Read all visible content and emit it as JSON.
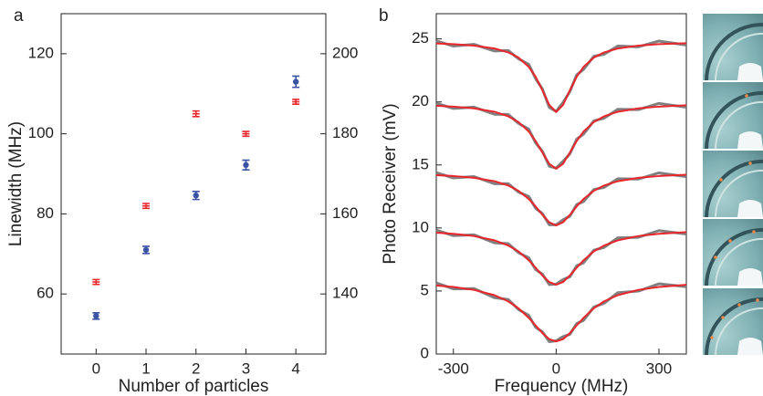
{
  "chart_data": [
    {
      "type": "scatter",
      "panel_label": "a",
      "xlabel": "Number of particles",
      "ylabel": "Linewidth (MHz)",
      "x": [
        0,
        1,
        2,
        3,
        4
      ],
      "xlim": [
        -0.7,
        4.6
      ],
      "xticks": [
        0,
        1,
        2,
        3,
        4
      ],
      "ylim": [
        45,
        130
      ],
      "yticks": [
        60,
        80,
        100,
        120
      ],
      "y2lim": [
        125,
        210
      ],
      "y2ticks": [
        140,
        160,
        180,
        200
      ],
      "series": [
        {
          "color": "#3a53a4",
          "marker": "circle",
          "values": [
            54.5,
            71,
            84.6,
            92.2,
            113
          ],
          "errors": [
            0.8,
            0.9,
            1.0,
            1.2,
            1.4
          ]
        },
        {
          "color": "#e8262b",
          "marker": "dash",
          "axis": "y2",
          "values": [
            143,
            162,
            185,
            180,
            188
          ],
          "errors": [
            0.6,
            0.6,
            0.7,
            0.6,
            0.6
          ]
        }
      ]
    },
    {
      "type": "line",
      "panel_label": "b",
      "xlabel": "Frequency (MHz)",
      "ylabel": "Photo Receiver (mV)",
      "x": [
        -350,
        -300,
        -240,
        -180,
        -140,
        -110,
        -80,
        -60,
        -40,
        -20,
        0,
        20,
        40,
        60,
        80,
        110,
        140,
        180,
        240,
        300,
        380
      ],
      "xlim": [
        -350,
        380
      ],
      "xticks": [
        -300,
        0,
        300
      ],
      "ylim": [
        0,
        27
      ],
      "yticks": [
        0,
        5,
        10,
        15,
        20,
        25
      ],
      "series": [
        {
          "color": "#808080",
          "line_width": 3,
          "values": [
            24.84,
            24.43,
            24.57,
            24.04,
            24.08,
            23.42,
            22.98,
            21.85,
            21.02,
            19.56,
            19.25,
            19.96,
            20.82,
            22.15,
            22.58,
            23.62,
            23.78,
            24.44,
            24.37,
            24.83,
            24.51
          ]
        },
        {
          "color": "#808080",
          "line_width": 3,
          "values": [
            19.9,
            19.48,
            19.59,
            19.02,
            19.01,
            18.3,
            17.85,
            16.75,
            16.08,
            14.89,
            14.75,
            15.29,
            15.88,
            17.05,
            17.45,
            18.5,
            18.71,
            19.42,
            19.39,
            19.88,
            19.58
          ]
        },
        {
          "color": "#808080",
          "line_width": 3,
          "values": [
            14.39,
            13.97,
            14.08,
            13.51,
            13.52,
            12.85,
            12.5,
            11.56,
            11.14,
            10.25,
            10.25,
            10.65,
            10.94,
            11.86,
            12.1,
            13.05,
            13.22,
            13.91,
            13.88,
            14.37,
            14.07
          ]
        },
        {
          "color": "#808080",
          "line_width": 3,
          "values": [
            9.83,
            9.39,
            9.46,
            8.82,
            8.76,
            8.04,
            7.64,
            6.7,
            6.33,
            5.51,
            5.55,
            5.91,
            6.13,
            7.0,
            7.24,
            8.24,
            8.46,
            9.22,
            9.26,
            9.79,
            9.52
          ]
        },
        {
          "color": "#808080",
          "line_width": 3,
          "values": [
            5.64,
            5.17,
            5.19,
            4.47,
            4.33,
            3.53,
            3.07,
            2.12,
            1.76,
            0.98,
            1.05,
            1.38,
            1.56,
            2.42,
            2.67,
            3.73,
            4.03,
            4.87,
            4.99,
            5.57,
            5.34
          ]
        },
        {
          "color": "#e8262b",
          "line_width": 2,
          "values": [
            24.64,
            24.58,
            24.47,
            24.24,
            23.93,
            23.52,
            22.78,
            22.0,
            20.92,
            19.76,
            19.2,
            19.76,
            20.92,
            22.0,
            22.78,
            23.52,
            23.93,
            24.24,
            24.47,
            24.58,
            24.66
          ]
        },
        {
          "color": "#e8262b",
          "line_width": 2,
          "values": [
            19.7,
            19.63,
            19.49,
            19.22,
            18.86,
            18.4,
            17.65,
            16.9,
            15.98,
            15.09,
            14.7,
            15.09,
            15.98,
            16.9,
            17.65,
            18.4,
            18.86,
            19.22,
            19.49,
            19.63,
            19.73
          ]
        },
        {
          "color": "#e8262b",
          "line_width": 2,
          "values": [
            14.19,
            14.12,
            13.98,
            13.71,
            13.37,
            12.95,
            12.3,
            11.71,
            11.04,
            10.45,
            10.2,
            10.45,
            11.04,
            11.71,
            12.3,
            12.95,
            13.37,
            13.71,
            13.98,
            14.12,
            14.22
          ]
        },
        {
          "color": "#e8262b",
          "line_width": 2,
          "values": [
            9.63,
            9.54,
            9.36,
            9.02,
            8.61,
            8.14,
            7.44,
            6.85,
            6.23,
            5.71,
            5.5,
            5.71,
            6.23,
            6.85,
            7.44,
            8.14,
            8.61,
            9.02,
            9.36,
            9.54,
            9.67
          ]
        },
        {
          "color": "#e8262b",
          "line_width": 2,
          "values": [
            5.44,
            5.32,
            5.09,
            4.67,
            4.18,
            3.63,
            2.87,
            2.27,
            1.66,
            1.18,
            1.0,
            1.18,
            1.66,
            2.27,
            2.87,
            3.63,
            4.18,
            4.67,
            5.09,
            5.32,
            5.49
          ]
        }
      ]
    }
  ]
}
